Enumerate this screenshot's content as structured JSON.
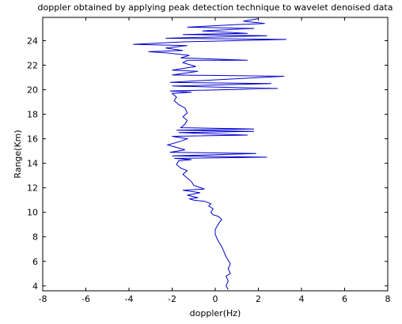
{
  "chart_data": {
    "type": "line",
    "title": "doppler obtained by applying peak detection technique to wavelet denoised data",
    "xlabel": "doppler(Hz)",
    "ylabel": "Range(Km)",
    "xlim": [
      -8,
      8
    ],
    "ylim": [
      3.6,
      25.9
    ],
    "x_ticks": [
      "-8",
      "-6",
      "-4",
      "-2",
      "0",
      "2",
      "4",
      "6",
      "8"
    ],
    "y_ticks": [
      "4",
      "6",
      "8",
      "10",
      "12",
      "14",
      "16",
      "18",
      "20",
      "22",
      "24"
    ],
    "grid": false,
    "line_color": "#0000cc",
    "series": [
      {
        "points": [
          [
            0.6,
            3.7
          ],
          [
            0.5,
            4.0
          ],
          [
            0.6,
            4.4
          ],
          [
            0.5,
            4.8
          ],
          [
            0.7,
            5.0
          ],
          [
            0.6,
            5.4
          ],
          [
            0.7,
            5.8
          ],
          [
            0.6,
            6.1
          ],
          [
            0.5,
            6.4
          ],
          [
            0.4,
            6.8
          ],
          [
            0.3,
            7.2
          ],
          [
            0.2,
            7.5
          ],
          [
            0.1,
            7.8
          ],
          [
            0.0,
            8.2
          ],
          [
            0.0,
            8.6
          ],
          [
            0.1,
            8.9
          ],
          [
            0.2,
            9.2
          ],
          [
            0.3,
            9.4
          ],
          [
            0.2,
            9.6
          ],
          [
            0.1,
            9.7
          ],
          [
            -0.1,
            9.8
          ],
          [
            -0.2,
            10.0
          ],
          [
            -0.1,
            10.3
          ],
          [
            -0.3,
            10.5
          ],
          [
            -0.2,
            10.7
          ],
          [
            -0.5,
            10.9
          ],
          [
            -1.0,
            11.0
          ],
          [
            -1.2,
            11.1
          ],
          [
            -0.8,
            11.2
          ],
          [
            -1.3,
            11.4
          ],
          [
            -0.7,
            11.6
          ],
          [
            -1.5,
            11.8
          ],
          [
            -0.5,
            11.9
          ],
          [
            -1.0,
            12.2
          ],
          [
            -1.1,
            12.5
          ],
          [
            -1.3,
            12.8
          ],
          [
            -1.5,
            13.1
          ],
          [
            -1.3,
            13.4
          ],
          [
            -1.6,
            13.6
          ],
          [
            -1.8,
            13.9
          ],
          [
            -1.7,
            14.2
          ],
          [
            -1.1,
            14.3
          ],
          [
            -1.9,
            14.4
          ],
          [
            2.4,
            14.5
          ],
          [
            -2.0,
            14.6
          ],
          [
            1.9,
            14.8
          ],
          [
            -2.1,
            14.9
          ],
          [
            -1.4,
            15.1
          ],
          [
            -1.8,
            15.3
          ],
          [
            -2.2,
            15.5
          ],
          [
            -1.6,
            15.8
          ],
          [
            -1.3,
            16.0
          ],
          [
            -2.0,
            16.2
          ],
          [
            1.5,
            16.3
          ],
          [
            -1.7,
            16.5
          ],
          [
            1.8,
            16.6
          ],
          [
            -1.8,
            16.7
          ],
          [
            1.8,
            16.8
          ],
          [
            -1.6,
            16.9
          ],
          [
            -1.4,
            17.2
          ],
          [
            -1.3,
            17.5
          ],
          [
            -1.5,
            17.8
          ],
          [
            -1.3,
            18.1
          ],
          [
            -1.4,
            18.5
          ],
          [
            -1.7,
            18.8
          ],
          [
            -1.9,
            19.1
          ],
          [
            -1.8,
            19.4
          ],
          [
            -2.0,
            19.7
          ],
          [
            -1.1,
            19.8
          ],
          [
            -2.1,
            19.9
          ],
          [
            2.9,
            20.1
          ],
          [
            -2.0,
            20.3
          ],
          [
            2.6,
            20.5
          ],
          [
            -2.1,
            20.6
          ],
          [
            -1.2,
            20.7
          ],
          [
            3.2,
            21.1
          ],
          [
            -2.0,
            21.2
          ],
          [
            -0.8,
            21.5
          ],
          [
            -2.0,
            21.6
          ],
          [
            -0.9,
            21.9
          ],
          [
            -1.5,
            22.2
          ],
          [
            -1.3,
            22.4
          ],
          [
            1.5,
            22.4
          ],
          [
            -1.6,
            22.6
          ],
          [
            -1.2,
            22.8
          ],
          [
            -2.2,
            23.0
          ],
          [
            -3.1,
            23.1
          ],
          [
            -1.5,
            23.2
          ],
          [
            -2.3,
            23.4
          ],
          [
            -1.3,
            23.6
          ],
          [
            -3.8,
            23.7
          ],
          [
            -1.5,
            23.9
          ],
          [
            3.3,
            24.1
          ],
          [
            -2.3,
            24.2
          ],
          [
            2.4,
            24.4
          ],
          [
            -1.5,
            24.5
          ],
          [
            1.5,
            24.6
          ],
          [
            -0.6,
            24.8
          ],
          [
            1.8,
            25.0
          ],
          [
            -1.3,
            25.1
          ],
          [
            0.9,
            25.3
          ],
          [
            2.3,
            25.4
          ],
          [
            1.3,
            25.6
          ],
          [
            2.0,
            25.8
          ]
        ]
      }
    ]
  }
}
